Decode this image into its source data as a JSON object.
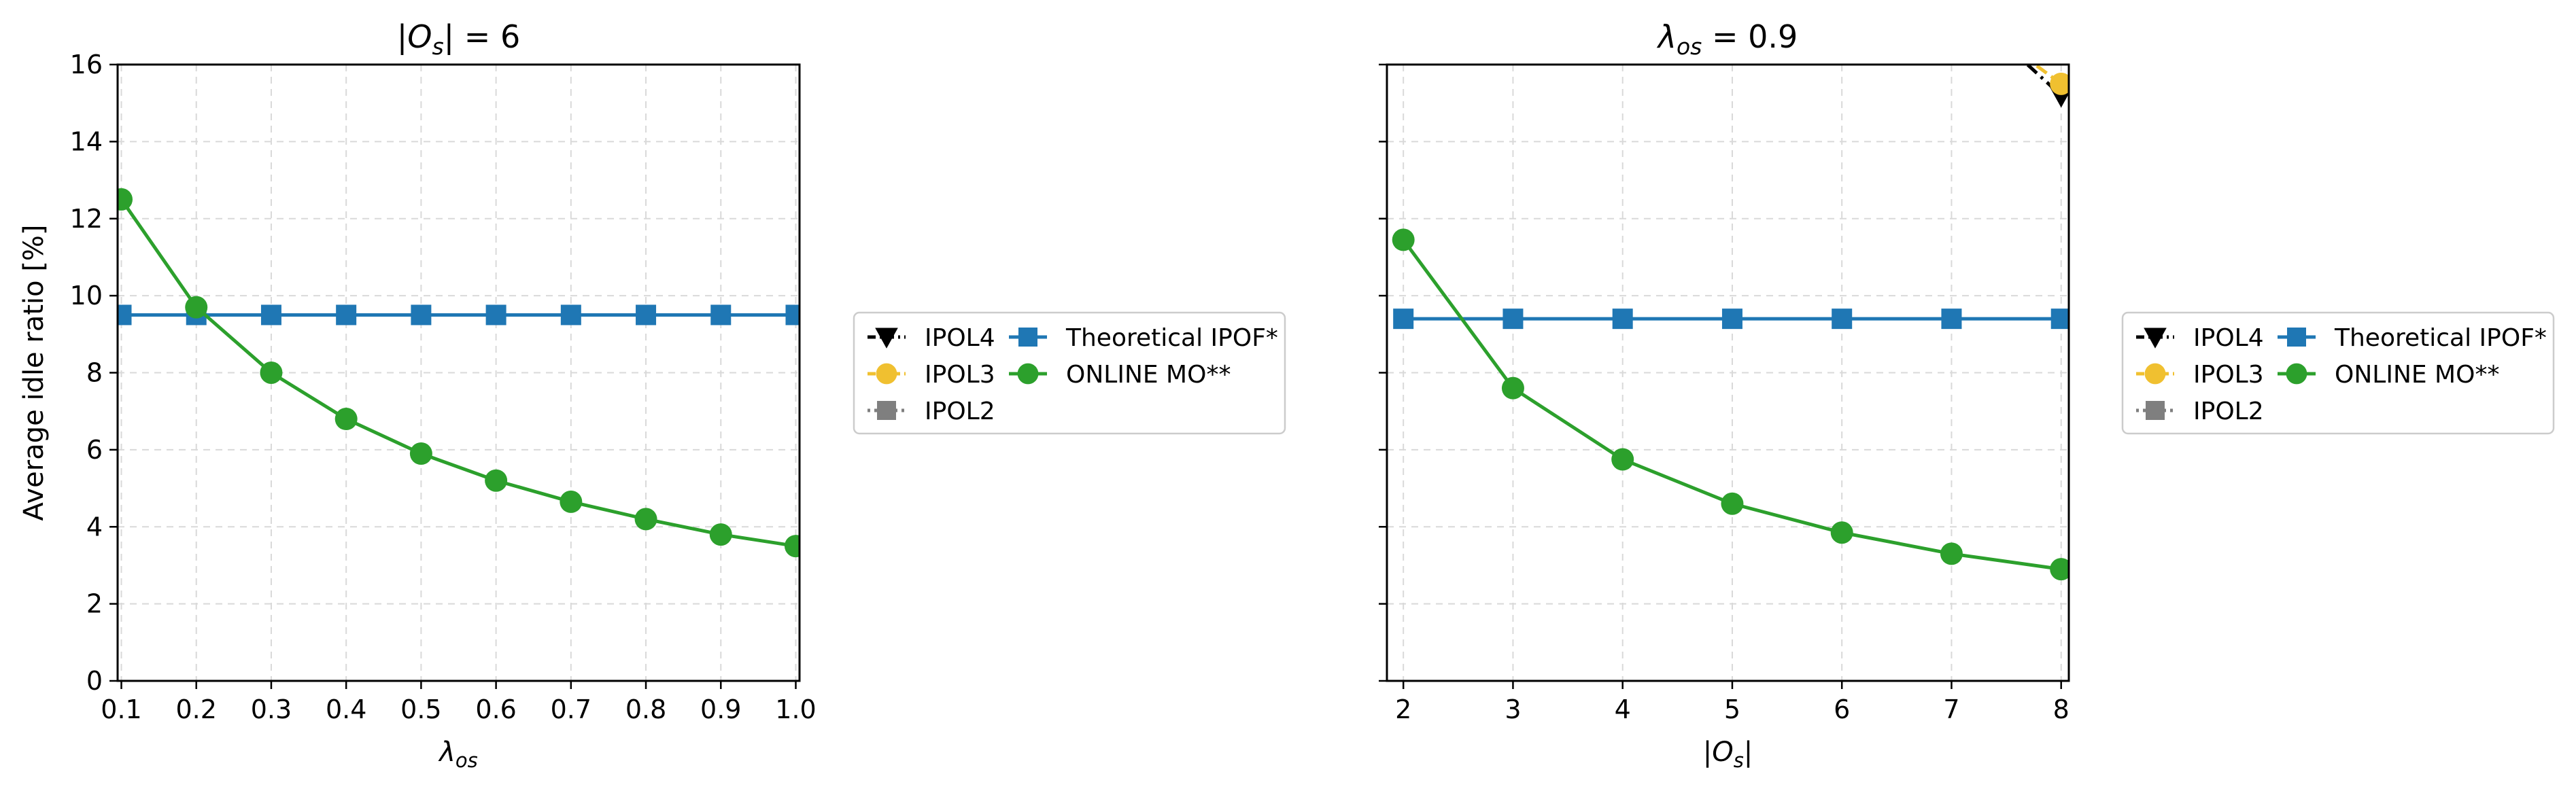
{
  "chart_data": [
    {
      "type": "line",
      "title": "|O_s| = 6",
      "xlabel": "λ_os",
      "ylabel": "Average idle ratio [%]",
      "xlim": [
        0.095,
        1.005
      ],
      "ylim": [
        0,
        16
      ],
      "xticks": [
        "0.1",
        "0.2",
        "0.3",
        "0.4",
        "0.5",
        "0.6",
        "0.7",
        "0.8",
        "0.9",
        "1.0"
      ],
      "yticks": [
        "0",
        "2",
        "4",
        "6",
        "8",
        "10",
        "12",
        "14",
        "16"
      ],
      "grid": true,
      "legend_placement": "outside right",
      "x": [
        0.1,
        0.2,
        0.3,
        0.4,
        0.5,
        0.6,
        0.7,
        0.8,
        0.9,
        1.0
      ],
      "series": [
        {
          "name": "IPOL4",
          "color": "#000000",
          "marker": "triangle-down",
          "dash": "dashdot",
          "points": []
        },
        {
          "name": "IPOL3",
          "color": "#f0c030",
          "marker": "circle",
          "dash": "dashed",
          "points": []
        },
        {
          "name": "IPOL2",
          "color": "#7f7f7f",
          "marker": "square",
          "dash": "dotted",
          "points": []
        },
        {
          "name": "Theoretical IPOF*",
          "color": "#1f77b4",
          "marker": "square",
          "dash": "solid",
          "points": [
            [
              0.1,
              9.5
            ],
            [
              0.2,
              9.5
            ],
            [
              0.3,
              9.5
            ],
            [
              0.4,
              9.5
            ],
            [
              0.5,
              9.5
            ],
            [
              0.6,
              9.5
            ],
            [
              0.7,
              9.5
            ],
            [
              0.8,
              9.5
            ],
            [
              0.9,
              9.5
            ],
            [
              1.0,
              9.5
            ]
          ]
        },
        {
          "name": "ONLINE MO**",
          "color": "#2ca02c",
          "marker": "circle",
          "dash": "solid",
          "points": [
            [
              0.1,
              12.5
            ],
            [
              0.2,
              9.7
            ],
            [
              0.3,
              8.0
            ],
            [
              0.4,
              6.8
            ],
            [
              0.5,
              5.9
            ],
            [
              0.6,
              5.2
            ],
            [
              0.7,
              4.65
            ],
            [
              0.8,
              4.2
            ],
            [
              0.9,
              3.8
            ],
            [
              1.0,
              3.5
            ]
          ]
        }
      ],
      "legend_order": [
        [
          "IPOL4",
          "IPOL3",
          "IPOL2"
        ],
        [
          "Theoretical IPOF*",
          "ONLINE MO**"
        ]
      ]
    },
    {
      "type": "line",
      "title": "λ_os = 0.9",
      "xlabel": "|O_s|",
      "ylabel": "",
      "xlim": [
        1.85,
        8.07
      ],
      "ylim": [
        0,
        16
      ],
      "xticks": [
        "2",
        "3",
        "4",
        "5",
        "6",
        "7",
        "8"
      ],
      "yticks": [],
      "grid": true,
      "legend_placement": "outside right",
      "series": [
        {
          "name": "IPOL4",
          "color": "#000000",
          "marker": "triangle-down",
          "dash": "dashdot",
          "points": [
            [
              7,
              17.8
            ],
            [
              8,
              15.2
            ]
          ]
        },
        {
          "name": "IPOL3",
          "color": "#f0c030",
          "marker": "circle",
          "dash": "dashed",
          "points": [
            [
              7,
              17.6
            ],
            [
              8,
              15.5
            ]
          ]
        },
        {
          "name": "IPOL2",
          "color": "#7f7f7f",
          "marker": "square",
          "dash": "dotted",
          "points": []
        },
        {
          "name": "Theoretical IPOF*",
          "color": "#1f77b4",
          "marker": "square",
          "dash": "solid",
          "points": [
            [
              2,
              9.4
            ],
            [
              3,
              9.4
            ],
            [
              4,
              9.4
            ],
            [
              5,
              9.4
            ],
            [
              6,
              9.4
            ],
            [
              7,
              9.4
            ],
            [
              8,
              9.4
            ]
          ]
        },
        {
          "name": "ONLINE MO**",
          "color": "#2ca02c",
          "marker": "circle",
          "dash": "solid",
          "points": [
            [
              2,
              11.45
            ],
            [
              3,
              7.6
            ],
            [
              4,
              5.75
            ],
            [
              5,
              4.6
            ],
            [
              6,
              3.85
            ],
            [
              7,
              3.3
            ],
            [
              8,
              2.9
            ]
          ]
        }
      ],
      "legend_order": [
        [
          "IPOL4",
          "IPOL3",
          "IPOL2"
        ],
        [
          "Theoretical IPOF*",
          "ONLINE MO**"
        ]
      ]
    }
  ]
}
